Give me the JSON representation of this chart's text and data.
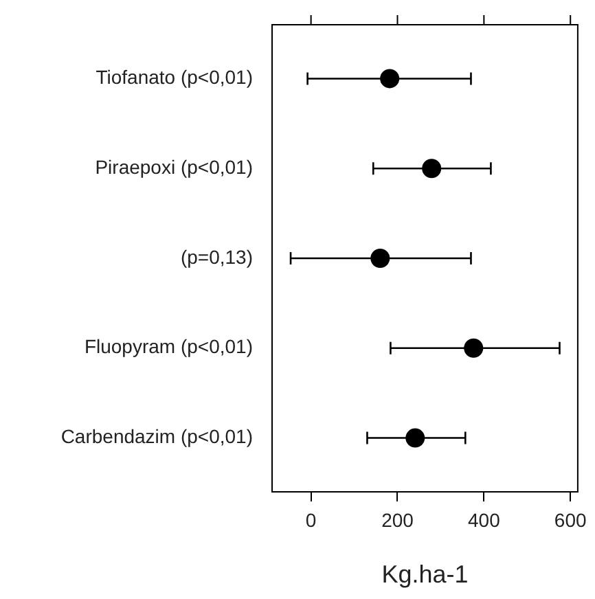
{
  "chart_data": {
    "type": "scatter",
    "orientation": "horizontal",
    "xlabel": "Kg.ha-1",
    "categories": [
      "Tiofanato (p<0,01)",
      "Piraepoxi (p<0,01)",
      "(p=0,13)",
      "Fluopyram (p<0,01)",
      "Carbendazim (p<0,01)"
    ],
    "values": [
      182,
      279,
      160,
      376,
      241
    ],
    "errors": [
      [
        -8,
        370
      ],
      [
        144,
        416
      ],
      [
        -47,
        370
      ],
      [
        184,
        575
      ],
      [
        130,
        357
      ]
    ],
    "color": "#000000",
    "marker": "circle",
    "xlim": [
      -90,
      617
    ],
    "xticks": [
      0,
      200,
      400,
      600
    ]
  }
}
